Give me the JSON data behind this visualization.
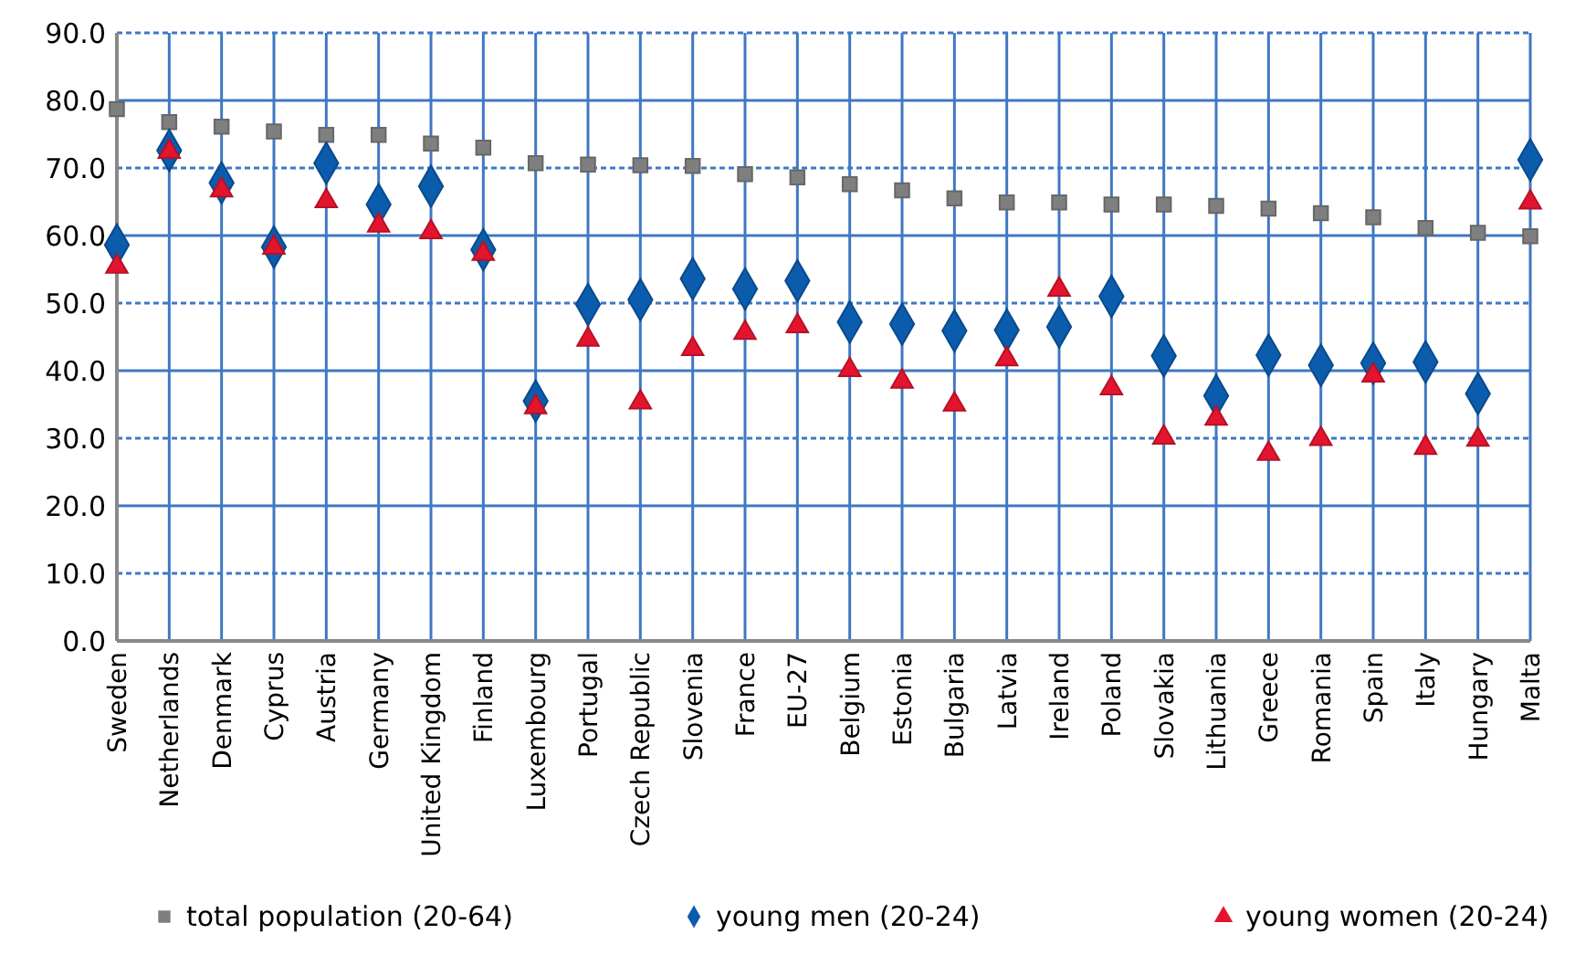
{
  "chart_data": {
    "type": "scatter",
    "categories": [
      "Sweden",
      "Netherlands",
      "Denmark",
      "Cyprus",
      "Austria",
      "Germany",
      "United Kingdom",
      "Finland",
      "Luxembourg",
      "Portugal",
      "Czech Republic",
      "Slovenia",
      "France",
      "EU-27",
      "Belgium",
      "Estonia",
      "Bulgaria",
      "Latvia",
      "Ireland",
      "Poland",
      "Slovakia",
      "Lithuania",
      "Greece",
      "Romania",
      "Spain",
      "Italy",
      "Hungary",
      "Malta"
    ],
    "series": [
      {
        "name": "total population (20-64)",
        "color": "#7f7f7f",
        "marker": "square",
        "values": [
          78.7,
          76.8,
          76.1,
          75.4,
          74.9,
          74.9,
          73.6,
          73.0,
          70.7,
          70.5,
          70.4,
          70.3,
          69.1,
          68.6,
          67.6,
          66.7,
          65.5,
          64.9,
          64.9,
          64.6,
          64.6,
          64.4,
          64.0,
          63.3,
          62.7,
          61.1,
          60.4,
          59.9
        ]
      },
      {
        "name": "young men (20-24)",
        "color": "#0b5cad",
        "marker": "diamond",
        "values": [
          58.6,
          72.6,
          67.8,
          58.3,
          70.7,
          64.6,
          67.3,
          57.9,
          35.5,
          49.8,
          50.5,
          53.6,
          52.1,
          53.3,
          47.2,
          46.9,
          45.9,
          46.0,
          46.5,
          51.0,
          42.2,
          36.3,
          42.3,
          40.8,
          41.1,
          41.3,
          36.6,
          71.2
        ]
      },
      {
        "name": "young women (20-24)",
        "color": "#e3152e",
        "marker": "triangle",
        "values": [
          55.4,
          72.4,
          66.7,
          58.2,
          65.1,
          61.5,
          60.5,
          57.3,
          34.6,
          44.6,
          35.3,
          43.2,
          45.6,
          46.6,
          40.1,
          38.4,
          35.0,
          41.7,
          52.0,
          37.4,
          30.1,
          32.9,
          27.7,
          29.9,
          39.3,
          28.6,
          29.8,
          64.9
        ]
      }
    ],
    "ylim": [
      0,
      90
    ],
    "yticks": [
      {
        "value": 0,
        "label": "0.0"
      },
      {
        "value": 10,
        "label": "10.0"
      },
      {
        "value": 20,
        "label": "20.0"
      },
      {
        "value": 30,
        "label": "30.0"
      },
      {
        "value": 40,
        "label": "40.0"
      },
      {
        "value": 50,
        "label": "50.0"
      },
      {
        "value": 60,
        "label": "60.0"
      },
      {
        "value": 70,
        "label": "70.0"
      },
      {
        "value": 80,
        "label": "80.0"
      },
      {
        "value": 90,
        "label": "90.0"
      }
    ],
    "grid": true,
    "legend": "bottom"
  }
}
